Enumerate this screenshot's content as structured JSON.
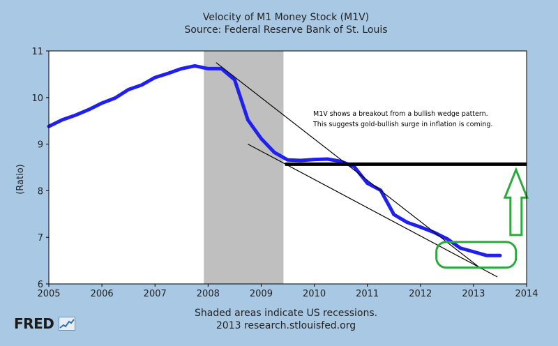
{
  "chart_data": {
    "type": "line",
    "title": "Velocity of M1 Money Stock (M1V)",
    "subtitle": "Source: Federal Reserve Bank of St. Louis",
    "ylabel": "(Ratio)",
    "xlabel": "",
    "xlim": [
      2005,
      2014
    ],
    "ylim": [
      6,
      11
    ],
    "x_ticks": [
      2005,
      2006,
      2007,
      2008,
      2009,
      2010,
      2011,
      2012,
      2013,
      2014
    ],
    "y_ticks": [
      6,
      7,
      8,
      9,
      10,
      11
    ],
    "recession": {
      "start": 2007.92,
      "end": 2009.42
    },
    "series": [
      {
        "name": "M1V",
        "color": "#1f1ff0",
        "points": [
          [
            2005.0,
            9.38
          ],
          [
            2005.25,
            9.52
          ],
          [
            2005.5,
            9.62
          ],
          [
            2005.75,
            9.74
          ],
          [
            2006.0,
            9.88
          ],
          [
            2006.25,
            9.99
          ],
          [
            2006.5,
            10.17
          ],
          [
            2006.75,
            10.27
          ],
          [
            2007.0,
            10.43
          ],
          [
            2007.25,
            10.52
          ],
          [
            2007.5,
            10.62
          ],
          [
            2007.75,
            10.68
          ],
          [
            2008.0,
            10.62
          ],
          [
            2008.25,
            10.62
          ],
          [
            2008.5,
            10.38
          ],
          [
            2008.75,
            9.52
          ],
          [
            2009.0,
            9.12
          ],
          [
            2009.25,
            8.82
          ],
          [
            2009.5,
            8.66
          ],
          [
            2009.75,
            8.65
          ],
          [
            2010.0,
            8.67
          ],
          [
            2010.25,
            8.68
          ],
          [
            2010.5,
            8.63
          ],
          [
            2010.75,
            8.52
          ],
          [
            2011.0,
            8.16
          ],
          [
            2011.25,
            8.01
          ],
          [
            2011.5,
            7.49
          ],
          [
            2011.75,
            7.32
          ],
          [
            2012.0,
            7.22
          ],
          [
            2012.25,
            7.11
          ],
          [
            2012.5,
            6.97
          ],
          [
            2012.75,
            6.77
          ],
          [
            2013.0,
            6.69
          ],
          [
            2013.25,
            6.61
          ],
          [
            2013.5,
            6.61
          ]
        ]
      }
    ],
    "annotation_lines": [
      {
        "name": "upper-wedge-line",
        "x1": 2008.15,
        "y1": 10.75,
        "x2": 2013.15,
        "y2": 6.32
      },
      {
        "name": "lower-wedge-line",
        "x1": 2008.75,
        "y1": 9.0,
        "x2": 2013.45,
        "y2": 6.15
      },
      {
        "name": "breakout-level-line",
        "x1": 2009.45,
        "y1": 8.57,
        "x2": 2014.0,
        "y2": 8.57
      }
    ],
    "annotation_text": [
      "M1V shows a breakout from a bullish wedge pattern.",
      "This suggests gold-bullish surge in inflation is coming."
    ],
    "highlight_ellipse": {
      "x1": 2012.3,
      "y1": 6.35,
      "x2": 2013.8,
      "y2": 6.9
    },
    "up_arrow": {
      "x": 2013.8,
      "y_bottom": 7.05,
      "y_top": 8.45
    }
  },
  "footer": {
    "line1": "Shaded areas indicate US recessions.",
    "line2": "2013 research.stlouisfed.org"
  },
  "logo": {
    "text": "FRED"
  },
  "colors": {
    "background": "#a9c8e3",
    "plot_background": "#ffffff",
    "recession_shade": "#bfbfbf",
    "series": "#1f1ff0",
    "highlight": "#2aaa3c",
    "thick_line": "#000000"
  }
}
